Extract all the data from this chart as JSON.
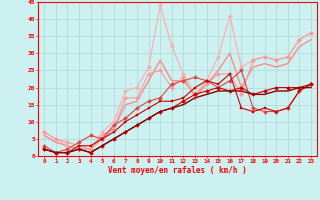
{
  "xlabel": "Vent moyen/en rafales ( km/h )",
  "bg_color": "#cdf0f0",
  "grid_color": "#aad8d8",
  "xlim": [
    -0.5,
    23.5
  ],
  "ylim": [
    0,
    45
  ],
  "yticks": [
    0,
    5,
    10,
    15,
    20,
    25,
    30,
    35,
    40,
    45
  ],
  "xticks": [
    0,
    1,
    2,
    3,
    4,
    5,
    6,
    7,
    8,
    9,
    10,
    11,
    12,
    13,
    14,
    15,
    16,
    17,
    18,
    19,
    20,
    21,
    22,
    23
  ],
  "series": [
    {
      "x": [
        0,
        1,
        2,
        3,
        4,
        5,
        6,
        7,
        8,
        9,
        10,
        11,
        12,
        13,
        14,
        15,
        16,
        17,
        18,
        19,
        20,
        21,
        22,
        23
      ],
      "y": [
        7,
        5,
        3,
        2,
        2,
        7,
        10,
        19,
        20,
        26,
        44,
        32,
        24,
        18,
        22,
        29,
        41,
        26,
        28,
        29,
        28,
        29,
        34,
        36
      ],
      "color": "#ffaaaa",
      "lw": 0.8,
      "marker": "D",
      "ms": 2.0,
      "zorder": 2
    },
    {
      "x": [
        0,
        1,
        2,
        3,
        4,
        5,
        6,
        7,
        8,
        9,
        10,
        11,
        12,
        13,
        14,
        15,
        16,
        17,
        18,
        19,
        20,
        21,
        22,
        23
      ],
      "y": [
        7,
        5,
        4,
        3,
        2,
        5,
        8,
        17,
        17,
        24,
        25,
        20,
        23,
        17,
        21,
        24,
        24,
        18,
        28,
        29,
        28,
        29,
        34,
        36
      ],
      "color": "#ff9999",
      "lw": 0.8,
      "marker": "D",
      "ms": 2.0,
      "zorder": 3
    },
    {
      "x": [
        0,
        1,
        2,
        3,
        4,
        5,
        6,
        7,
        8,
        9,
        10,
        11,
        12,
        13,
        14,
        15,
        16,
        17,
        18,
        19,
        20,
        21,
        22,
        23
      ],
      "y": [
        6,
        4,
        3,
        2,
        2,
        6,
        8,
        15,
        16,
        22,
        28,
        22,
        22,
        18,
        21,
        25,
        30,
        20,
        26,
        27,
        26,
        27,
        32,
        34
      ],
      "color": "#ff8888",
      "lw": 1.0,
      "marker": null,
      "ms": 0,
      "zorder": 1
    },
    {
      "x": [
        0,
        1,
        2,
        3,
        4,
        5,
        6,
        7,
        8,
        9,
        10,
        11,
        12,
        13,
        14,
        15,
        16,
        17,
        18,
        19,
        20,
        21,
        22,
        23
      ],
      "y": [
        3,
        1,
        2,
        4,
        6,
        5,
        9,
        11,
        14,
        16,
        17,
        21,
        22,
        23,
        22,
        20,
        22,
        25,
        14,
        13,
        13,
        14,
        19,
        21
      ],
      "color": "#dd4444",
      "lw": 0.8,
      "marker": "D",
      "ms": 2.0,
      "zorder": 4
    },
    {
      "x": [
        0,
        1,
        2,
        3,
        4,
        5,
        6,
        7,
        8,
        9,
        10,
        11,
        12,
        13,
        14,
        15,
        16,
        17,
        18,
        19,
        20,
        21,
        22,
        23
      ],
      "y": [
        2,
        1,
        1,
        3,
        3,
        5,
        7,
        10,
        12,
        14,
        16,
        16,
        17,
        20,
        22,
        21,
        24,
        14,
        13,
        14,
        13,
        14,
        19,
        21
      ],
      "color": "#cc0000",
      "lw": 0.8,
      "marker": "s",
      "ms": 2.0,
      "zorder": 4
    },
    {
      "x": [
        0,
        1,
        2,
        3,
        4,
        5,
        6,
        7,
        8,
        9,
        10,
        11,
        12,
        13,
        14,
        15,
        16,
        17,
        18,
        19,
        20,
        21,
        22,
        23
      ],
      "y": [
        2,
        1,
        1,
        2,
        1,
        3,
        5,
        7,
        9,
        11,
        13,
        14,
        16,
        18,
        19,
        20,
        19,
        20,
        18,
        19,
        20,
        20,
        20,
        21
      ],
      "color": "#cc0000",
      "lw": 0.8,
      "marker": "D",
      "ms": 2.0,
      "zorder": 5
    },
    {
      "x": [
        0,
        1,
        2,
        3,
        4,
        5,
        6,
        7,
        8,
        9,
        10,
        11,
        12,
        13,
        14,
        15,
        16,
        17,
        18,
        19,
        20,
        21,
        22,
        23
      ],
      "y": [
        2,
        1,
        1,
        2,
        1,
        3,
        5,
        7,
        9,
        11,
        13,
        14,
        15,
        17,
        18,
        19,
        19,
        19,
        18,
        18,
        19,
        19,
        20,
        20
      ],
      "color": "#880000",
      "lw": 1.0,
      "marker": null,
      "ms": 0,
      "zorder": 6
    }
  ]
}
